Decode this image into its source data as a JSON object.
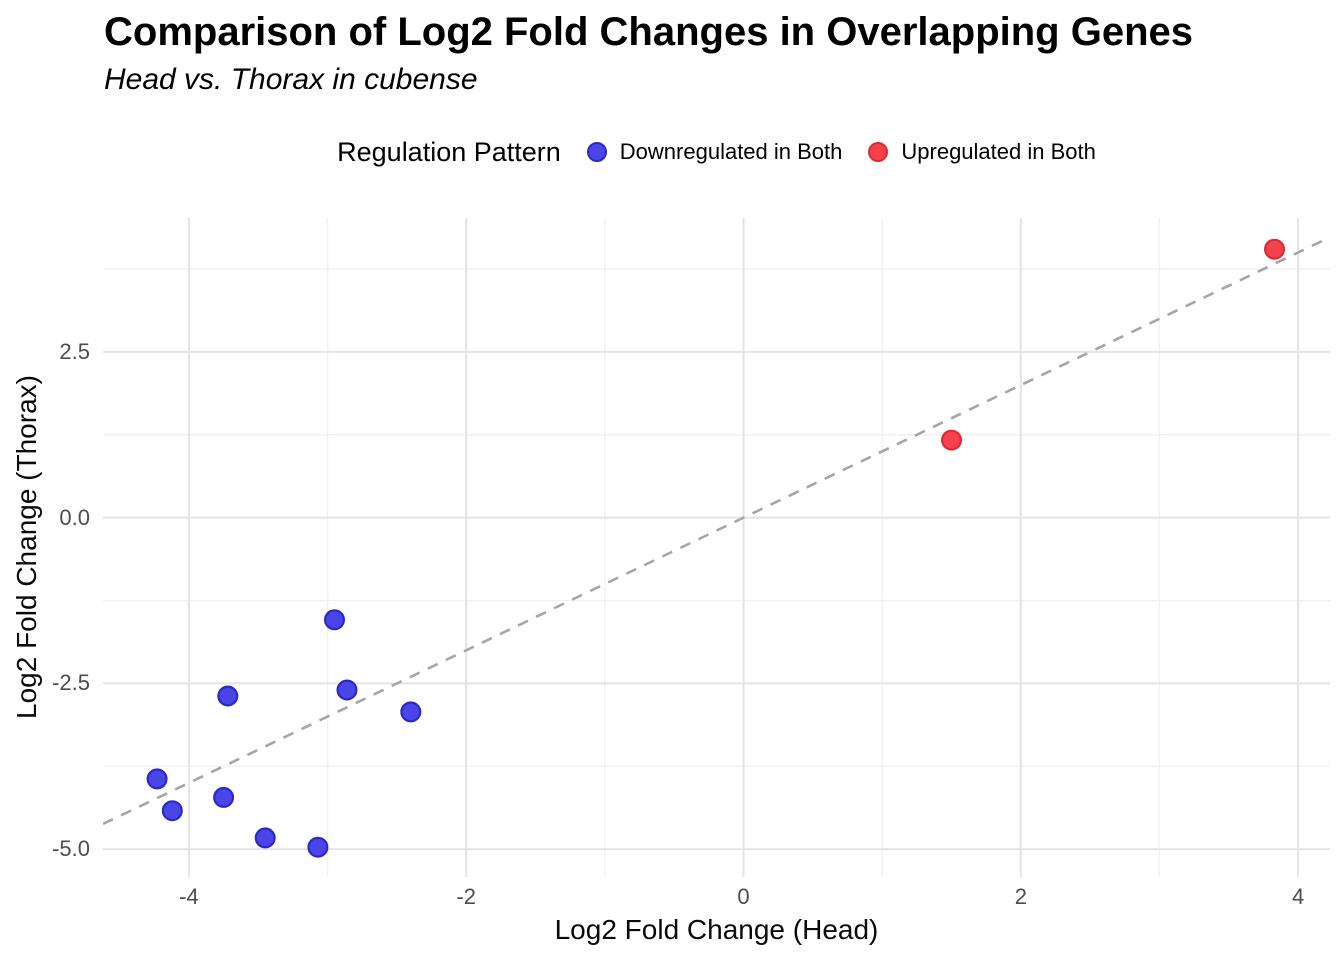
{
  "header": {
    "title": "Comparison of Log2 Fold Changes in Overlapping Genes",
    "subtitle": "Head vs. Thorax in cubense"
  },
  "legend": {
    "title": "Regulation Pattern",
    "items": [
      {
        "label": "Downregulated in Both",
        "color": "#4a45e6",
        "border": "#2b28c8"
      },
      {
        "label": "Upregulated in Both",
        "color": "#f5414a",
        "border": "#d92c33"
      }
    ]
  },
  "axes": {
    "xlabel": "Log2 Fold Change (Head)",
    "ylabel": "Log2 Fold Change (Thorax)"
  },
  "colors": {
    "grid_major": "#e4e4e4",
    "grid_minor": "#f0f0f0",
    "reference_line": "#a6a6a6",
    "tick_text": "#4d4d4d",
    "background": "#ffffff"
  },
  "chart_data": {
    "type": "scatter",
    "title": "Comparison of Log2 Fold Changes in Overlapping Genes",
    "subtitle": "Head vs. Thorax in cubense",
    "xlabel": "Log2 Fold Change (Head)",
    "ylabel": "Log2 Fold Change (Thorax)",
    "xlim": [
      -4.62,
      4.23
    ],
    "ylim": [
      -5.42,
      4.52
    ],
    "grid": "major+minor",
    "legend_position": "top-center",
    "xticks": {
      "major": [
        -4,
        -2,
        0,
        2,
        4
      ],
      "minor": [
        -3,
        -1,
        1,
        3
      ],
      "labels": [
        "-4",
        "-2",
        "0",
        "2",
        "4"
      ]
    },
    "yticks": {
      "major": [
        2.5,
        0,
        -2.5,
        -5
      ],
      "minor": [
        3.75,
        1.25,
        -1.25,
        -3.75
      ],
      "labels": [
        "2.5",
        "0.0",
        "-2.5",
        "-5.0"
      ]
    },
    "reference_line": {
      "type": "identity",
      "slope": 1,
      "intercept": 0,
      "style": "dashed",
      "color": "#a6a6a6"
    },
    "marker": {
      "radius": 9.4,
      "stroke_width": 2.2
    },
    "series": [
      {
        "name": "Downregulated in Both",
        "color": "#4a45e6",
        "stroke": "#2b28c8",
        "points": [
          [
            -2.95,
            -1.54
          ],
          [
            -2.86,
            -2.6
          ],
          [
            -3.72,
            -2.69
          ],
          [
            -2.4,
            -2.93
          ],
          [
            -4.23,
            -3.94
          ],
          [
            -3.75,
            -4.22
          ],
          [
            -4.12,
            -4.42
          ],
          [
            -3.45,
            -4.83
          ],
          [
            -3.07,
            -4.97
          ]
        ]
      },
      {
        "name": "Upregulated in Both",
        "color": "#f5414a",
        "stroke": "#d92c33",
        "points": [
          [
            1.5,
            1.17
          ],
          [
            3.83,
            4.05
          ]
        ]
      }
    ]
  }
}
